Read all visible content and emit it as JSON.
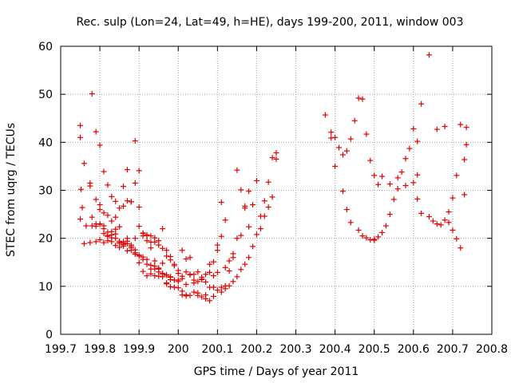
{
  "chart_data": {
    "type": "scatter",
    "title": "Rec. sulp (Lon=24, Lat=49, h=HE), days 199-200, 2011, window 003",
    "xlabel": "GPS time / Days of year 2011",
    "ylabel": "STEC from uqrg / TECUs",
    "xlim": [
      199.7,
      200.8
    ],
    "ylim": [
      0,
      60
    ],
    "xticks": [
      "199.7",
      "199.8",
      "199.9",
      "200",
      "200.1",
      "200.2",
      "200.3",
      "200.4",
      "200.5",
      "200.6",
      "200.7",
      "200.8"
    ],
    "yticks": [
      "0",
      "10",
      "20",
      "30",
      "40",
      "50",
      "60"
    ],
    "grid": true,
    "marker": "+",
    "color": "#e00000",
    "x": [
      199.75,
      199.75,
      199.752,
      199.76,
      199.775,
      199.79,
      199.8,
      199.81,
      199.82,
      199.83,
      199.84,
      199.85,
      199.86,
      199.87,
      199.88,
      199.89,
      199.9,
      199.91,
      199.92,
      199.93,
      199.94,
      199.95,
      199.96,
      199.97,
      199.98,
      199.75,
      199.755,
      199.765,
      199.775,
      199.78,
      199.79,
      199.8,
      199.81,
      199.82,
      199.83,
      199.84,
      199.85,
      199.86,
      199.87,
      199.88,
      199.89,
      199.9,
      199.91,
      199.92,
      199.93,
      199.94,
      199.95,
      199.96,
      199.97,
      199.98,
      199.99,
      200.0,
      200.01,
      200.02,
      200.03,
      200.04,
      200.05,
      200.06,
      200.07,
      200.08,
      200.09,
      200.1,
      200.11,
      200.12,
      200.13,
      200.14,
      200.15,
      200.16,
      200.17,
      200.18,
      200.19,
      200.2,
      200.21,
      200.22,
      200.23,
      200.24,
      200.25,
      199.78,
      199.79,
      199.8,
      199.81,
      199.82,
      199.83,
      199.84,
      199.85,
      199.86,
      199.87,
      199.88,
      199.89,
      199.9,
      199.91,
      199.92,
      199.93,
      199.94,
      199.95,
      199.96,
      199.97,
      199.98,
      199.99,
      200.0,
      200.01,
      200.02,
      200.03,
      200.04,
      200.05,
      200.06,
      200.07,
      200.08,
      200.09,
      200.1,
      200.11,
      200.12,
      200.13,
      200.14,
      200.15,
      200.16,
      200.17,
      200.18,
      199.76,
      199.775,
      199.79,
      199.8,
      199.81,
      199.82,
      199.83,
      199.84,
      199.85,
      199.86,
      199.87,
      199.88,
      199.89,
      199.9,
      199.91,
      199.92,
      199.93,
      199.94,
      199.95,
      199.96,
      199.97,
      199.98,
      199.99,
      200.0,
      200.01,
      200.02,
      200.03,
      200.04,
      200.05,
      200.06,
      200.07,
      200.08,
      200.09,
      200.1,
      200.11,
      200.12,
      199.78,
      199.79,
      199.8,
      199.81,
      199.82,
      199.83,
      199.84,
      199.85,
      199.86,
      199.87,
      199.88,
      199.89,
      199.9,
      199.91,
      199.92,
      199.93,
      199.94,
      199.95,
      199.96,
      199.97,
      199.98,
      199.99,
      200.0,
      200.01,
      200.02,
      199.8,
      199.81,
      199.82,
      199.83,
      199.84,
      199.85,
      199.86,
      199.87,
      199.88,
      199.89,
      199.9,
      199.91,
      199.92,
      199.93,
      199.94,
      199.95,
      199.96,
      199.97,
      199.98,
      199.99,
      200.0,
      200.01,
      200.02,
      200.03,
      200.04,
      200.05,
      200.06,
      200.07,
      200.08,
      200.09,
      200.1,
      200.11,
      200.12,
      200.13,
      200.14,
      200.15,
      200.16,
      200.17,
      200.18,
      200.19,
      200.2,
      200.21,
      200.22,
      200.23,
      200.24,
      200.25,
      200.375,
      200.39,
      200.4,
      200.41,
      200.42,
      200.43,
      200.44,
      200.45,
      200.46,
      200.47,
      200.48,
      200.49,
      200.5,
      200.51,
      200.39,
      200.4,
      200.42,
      200.43,
      200.44,
      200.46,
      200.47,
      200.48,
      200.49,
      200.5,
      200.51,
      200.52,
      200.53,
      200.54,
      200.55,
      200.56,
      200.57,
      200.58,
      200.59,
      200.6,
      200.61,
      200.5,
      200.52,
      200.54,
      200.56,
      200.58,
      200.6,
      200.61,
      200.62,
      200.64,
      200.66,
      200.68,
      200.69,
      200.7,
      200.71,
      200.72,
      200.73,
      200.735,
      200.61,
      200.62,
      200.64,
      200.65,
      200.66,
      200.67,
      200.68,
      200.69,
      200.7,
      200.71,
      200.72,
      200.73,
      200.735
    ],
    "y": [
      43.5,
      41.0,
      30.2,
      35.6,
      31.5,
      42.2,
      39.4,
      33.9,
      31.1,
      28.7,
      27.7,
      26.3,
      30.8,
      34.3,
      27.6,
      40.3,
      34.1,
      21.1,
      20.6,
      20.5,
      15.3,
      13.8,
      14.8,
      10.5,
      11.4,
      24.0,
      26.4,
      22.6,
      30.9,
      50.1,
      28.1,
      27.0,
      25.3,
      24.8,
      23.6,
      24.4,
      22.4,
      26.7,
      27.8,
      27.6,
      31.5,
      26.5,
      21.0,
      19.5,
      18.0,
      20.1,
      19.5,
      22.0,
      16.3,
      15.5,
      14.6,
      13.3,
      12.1,
      13.0,
      16.0,
      12.5,
      13.0,
      11.5,
      10.9,
      12.9,
      9.8,
      17.5,
      20.4,
      13.9,
      15.3,
      16.8,
      34.2,
      30.1,
      26.3,
      22.4,
      27.0,
      32.0,
      24.6,
      27.8,
      31.7,
      36.8,
      37.8,
      24.4,
      23.0,
      23.0,
      22.0,
      21.3,
      20.1,
      20.0,
      19.0,
      19.3,
      20.0,
      18.3,
      20.0,
      22.5,
      20.5,
      20.7,
      19.2,
      19.2,
      18.6,
      17.9,
      17.5,
      16.2,
      14.3,
      12.7,
      11.6,
      10.4,
      12.5,
      11.3,
      11.0,
      11.9,
      12.5,
      14.6,
      15.1,
      18.6,
      27.5,
      23.8,
      13.2,
      16.0,
      20.0,
      20.6,
      26.7,
      29.8,
      18.9,
      19.1,
      19.3,
      19.7,
      19.1,
      19.5,
      19.3,
      18.5,
      18.1,
      18.7,
      17.4,
      18.0,
      17.0,
      16.5,
      16.1,
      15.6,
      14.4,
      14.2,
      13.6,
      12.7,
      12.4,
      11.9,
      11.3,
      11.3,
      17.5,
      15.7,
      12.4,
      10.7,
      8.6,
      11.4,
      8.2,
      9.8,
      12.2,
      12.9,
      9.8,
      10.1,
      22.6,
      22.5,
      22.9,
      21.0,
      20.6,
      21.4,
      20.9,
      19.4,
      19.0,
      18.9,
      18.6,
      17.6,
      16.3,
      15.6,
      14.6,
      13.6,
      13.6,
      13.0,
      12.6,
      12.3,
      12.0,
      11.3,
      11.0,
      9.0,
      8.0,
      26.0,
      22.6,
      20.4,
      20.7,
      21.9,
      19.1,
      18.4,
      19.4,
      17.5,
      16.7,
      14.9,
      13.1,
      12.2,
      12.6,
      12.2,
      12.1,
      12.0,
      10.7,
      9.9,
      9.8,
      9.7,
      8.2,
      8.2,
      8.1,
      8.8,
      8.1,
      7.8,
      7.4,
      7.0,
      7.9,
      9.2,
      8.8,
      9.5,
      10.1,
      11.0,
      12.0,
      13.5,
      14.6,
      16.0,
      18.3,
      20.8,
      22.0,
      24.6,
      26.5,
      28.6,
      36.5,
      45.7,
      42.1,
      41.0,
      38.9,
      37.4,
      38.2,
      40.7,
      44.5,
      49.2,
      49.0,
      41.7,
      36.2,
      33.1,
      31.2,
      40.9,
      35.0,
      29.8,
      26.0,
      23.3,
      21.7,
      20.5,
      20.1,
      19.7,
      19.6,
      20.3,
      21.2,
      22.6,
      25.0,
      28.1,
      32.6,
      33.8,
      36.6,
      38.7,
      42.8,
      33.2,
      19.8,
      32.9,
      31.3,
      30.3,
      31.0,
      31.6,
      40.2,
      48.0,
      58.2,
      42.7,
      43.3,
      23.3,
      28.4,
      33.1,
      43.7,
      36.4,
      43.1,
      28.2,
      25.2,
      24.5,
      23.6,
      23.0,
      22.8,
      23.8,
      25.5,
      21.7,
      19.9,
      18.0,
      29.1,
      39.5
    ]
  }
}
